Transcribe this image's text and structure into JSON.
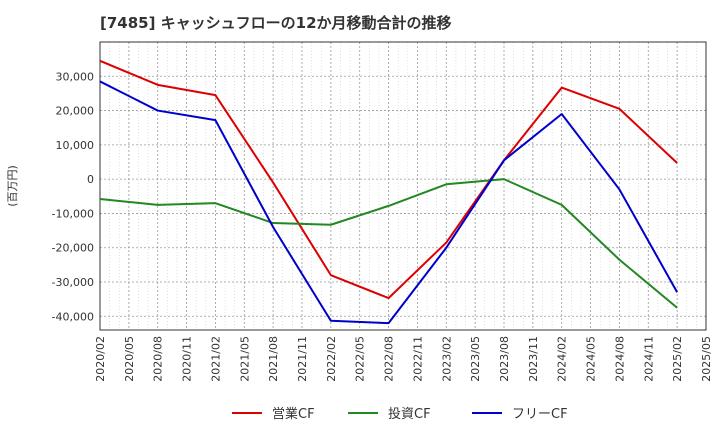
{
  "chart_data": {
    "type": "line",
    "title": "[7485]  キャッシュフローの12か月移動合計の推移",
    "ylabel": "(百万円)",
    "xlabel": "",
    "ylim": [
      -44000,
      40000
    ],
    "yticks": [
      30000,
      20000,
      10000,
      0,
      -10000,
      -20000,
      -30000,
      -40000
    ],
    "ytick_labels": [
      "30,000",
      "20,000",
      "10,000",
      "0",
      "-10,000",
      "-20,000",
      "-30,000",
      "-40,000"
    ],
    "categories": [
      "2020/02",
      "2020/05",
      "2020/08",
      "2020/11",
      "2021/02",
      "2021/05",
      "2021/08",
      "2021/11",
      "2022/02",
      "2022/05",
      "2022/08",
      "2022/11",
      "2023/02",
      "2023/05",
      "2023/08",
      "2023/11",
      "2024/02",
      "2024/05",
      "2024/08",
      "2024/11",
      "2025/02",
      "2025/05"
    ],
    "grid": true,
    "legend_position": "bottom",
    "series": [
      {
        "name": "営業CF",
        "color": "#dd0000",
        "x": [
          "2020/02",
          "2020/08",
          "2021/02",
          "2021/08",
          "2022/02",
          "2022/08",
          "2023/02",
          "2023/08",
          "2024/02",
          "2024/08",
          "2025/02"
        ],
        "values": [
          34500,
          27500,
          24500,
          -1000,
          -28000,
          -34700,
          -18500,
          5500,
          26700,
          20500,
          4700
        ]
      },
      {
        "name": "投資CF",
        "color": "#228822",
        "x": [
          "2020/02",
          "2020/08",
          "2021/02",
          "2021/08",
          "2022/02",
          "2022/08",
          "2023/02",
          "2023/08",
          "2024/02",
          "2024/08",
          "2025/02"
        ],
        "values": [
          -5800,
          -7500,
          -7000,
          -12800,
          -13300,
          -7800,
          -1500,
          0,
          -7500,
          -23500,
          -37500
        ]
      },
      {
        "name": "フリーCF",
        "color": "#0000cc",
        "x": [
          "2020/02",
          "2020/08",
          "2021/02",
          "2021/08",
          "2022/02",
          "2022/08",
          "2023/02",
          "2023/08",
          "2024/02",
          "2024/08",
          "2025/02"
        ],
        "values": [
          28500,
          20000,
          17200,
          -14000,
          -41300,
          -42000,
          -20000,
          5500,
          19000,
          -3000,
          -33000
        ]
      }
    ]
  }
}
